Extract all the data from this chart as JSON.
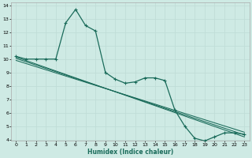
{
  "xlabel": "Humidex (Indice chaleur)",
  "background_color": "#ceeae4",
  "grid_color": "#c0ddd8",
  "line_color": "#1a6b5a",
  "xlim": [
    -0.5,
    23.5
  ],
  "ylim": [
    3.9,
    14.2
  ],
  "yticks": [
    4,
    5,
    6,
    7,
    8,
    9,
    10,
    11,
    12,
    13,
    14
  ],
  "xticks": [
    0,
    1,
    2,
    3,
    4,
    5,
    6,
    7,
    8,
    9,
    10,
    11,
    12,
    13,
    14,
    15,
    16,
    17,
    18,
    19,
    20,
    21,
    22,
    23
  ],
  "main_x": [
    0,
    1,
    2,
    3,
    4,
    5,
    6,
    7,
    8,
    9,
    10,
    11,
    12,
    13,
    14,
    15,
    16,
    17,
    18,
    19,
    20,
    21,
    22,
    23
  ],
  "main_y": [
    10.2,
    10.0,
    10.0,
    10.0,
    10.0,
    12.7,
    13.7,
    12.5,
    12.1,
    9.0,
    8.5,
    8.2,
    8.3,
    8.6,
    8.6,
    8.4,
    6.2,
    5.0,
    4.1,
    3.9,
    4.2,
    4.5,
    4.5,
    4.4
  ],
  "reg_lines": [
    [
      [
        0,
        23
      ],
      [
        10.15,
        4.2
      ]
    ],
    [
      [
        0,
        23
      ],
      [
        9.9,
        4.55
      ]
    ],
    [
      [
        0,
        23
      ],
      [
        10.05,
        4.35
      ]
    ]
  ]
}
